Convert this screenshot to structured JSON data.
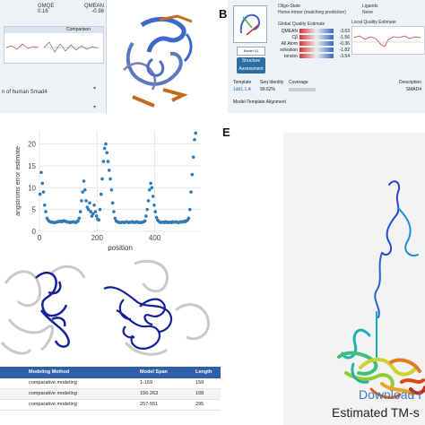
{
  "panel_labels": {
    "b": "B",
    "e": "E"
  },
  "panel_a": {
    "metric_labels": [
      "GMQE",
      "QMEAN"
    ],
    "metric_values": [
      "0.16",
      "-0.98"
    ],
    "comparison_title": "Comparison",
    "description": "n of human Smad4",
    "colors": {
      "bg": "#eef2f6",
      "helix": "#3a67c9",
      "strand": "#c66a1c"
    }
  },
  "panel_b": {
    "oligo_state_label": "Oligo-State",
    "oligo_state_value": "Homo-trimer (matching prediction)",
    "ligands_label": "Ligands",
    "ligands_value": "None",
    "global_quality_title": "Global Quality Estimate",
    "local_quality_title": "Local Quality Estimate",
    "model_button": "Model 01",
    "assessment_button": "Structure Assessment",
    "scores": [
      {
        "name": "QMEAN",
        "value": "-3.63"
      },
      {
        "name": "Cβ",
        "value": "-1.56"
      },
      {
        "name": "All Atom",
        "value": "-0.36"
      },
      {
        "name": "solvation",
        "value": "-1.82"
      },
      {
        "name": "torsion",
        "value": "-3.54"
      }
    ],
    "template_headers": [
      "Template",
      "Seq Identity",
      "Coverage",
      "Description"
    ],
    "template_row": [
      "1dd1.1.A",
      "99.62%",
      "",
      "SMAD4"
    ],
    "alignment_title": "Model-Template Alignment"
  },
  "chart_data": {
    "type": "scatter",
    "xlabel": "position",
    "ylabel": "angstroms error estimate",
    "xticks": [
      0,
      200,
      400
    ],
    "yticks": [
      0,
      5,
      10,
      15,
      20
    ],
    "xlim": [
      0,
      560
    ],
    "ylim": [
      0,
      23
    ],
    "grid": true,
    "color": "#2f7bb5",
    "x": [
      2,
      6,
      10,
      14,
      18,
      22,
      26,
      30,
      34,
      38,
      42,
      46,
      50,
      54,
      58,
      62,
      66,
      70,
      74,
      78,
      82,
      86,
      90,
      94,
      98,
      102,
      106,
      110,
      114,
      118,
      122,
      126,
      130,
      134,
      138,
      142,
      146,
      150,
      154,
      158,
      162,
      166,
      170,
      174,
      178,
      182,
      186,
      190,
      194,
      198,
      202,
      206,
      210,
      214,
      218,
      222,
      226,
      230,
      234,
      238,
      242,
      246,
      250,
      254,
      258,
      262,
      266,
      270,
      274,
      278,
      282,
      286,
      290,
      294,
      298,
      302,
      306,
      310,
      314,
      318,
      322,
      326,
      330,
      334,
      338,
      342,
      346,
      350,
      354,
      358,
      362,
      366,
      370,
      374,
      378,
      382,
      386,
      390,
      394,
      398,
      402,
      406,
      410,
      414,
      418,
      422,
      426,
      430,
      434,
      438,
      442,
      446,
      450,
      454,
      458,
      462,
      466,
      470,
      474,
      478,
      482,
      486,
      490,
      494,
      498,
      502,
      506,
      510,
      514,
      518,
      522,
      526,
      530,
      534,
      538,
      542
    ],
    "y": [
      8.5,
      13.5,
      11,
      9,
      6,
      4.5,
      3,
      2.6,
      2.3,
      2.2,
      2.1,
      2.1,
      2,
      2,
      2.1,
      2.2,
      2.2,
      2.3,
      2.3,
      2.2,
      2.4,
      2.4,
      2.3,
      2.2,
      2.1,
      2.1,
      2,
      2.1,
      2.1,
      2.2,
      2.1,
      2,
      2.2,
      2.4,
      3,
      4.5,
      7,
      9,
      11.5,
      9.5,
      7,
      5.5,
      5,
      6.5,
      4.5,
      3.5,
      4,
      6,
      4.5,
      3.5,
      2.8,
      2.6,
      5,
      8.5,
      12,
      16,
      19,
      20,
      18,
      16,
      14,
      12,
      9.5,
      6.5,
      4.5,
      3,
      2.4,
      2.2,
      2.1,
      2,
      2,
      2.1,
      2.1,
      2,
      2.1,
      2.2,
      2.1,
      2,
      2.1,
      2.1,
      2.2,
      2.1,
      2,
      2.1,
      2.2,
      2.1,
      2,
      2.1,
      2,
      2.1,
      2.2,
      2.4,
      3.5,
      5,
      7,
      9.5,
      11,
      10,
      8,
      6,
      4.5,
      3.2,
      2.6,
      2.3,
      2.1,
      2,
      2.1,
      2.1,
      2,
      2.2,
      2.1,
      2,
      2.1,
      2.1,
      2,
      2.2,
      2.1,
      2.1,
      2.2,
      2.1,
      2,
      2.1,
      2.2,
      2.1,
      2.2,
      2.3,
      2.2,
      2.4,
      2.6,
      3,
      5,
      9,
      13,
      17,
      21,
      22.5
    ]
  },
  "table": {
    "headers": [
      "",
      "Modeling Method",
      "Model Span",
      "Length"
    ],
    "rows": [
      [
        "",
        "comparative modeling",
        "1-159",
        "159"
      ],
      [
        "",
        "comparative modeling",
        "156-263",
        "108"
      ],
      [
        "",
        "comparative modeling",
        "257-551",
        "295"
      ]
    ],
    "header_color": "#2e5fa8"
  },
  "panel_e": {
    "download_text": "Download I",
    "estimated_text": "Estimated TM-s"
  }
}
